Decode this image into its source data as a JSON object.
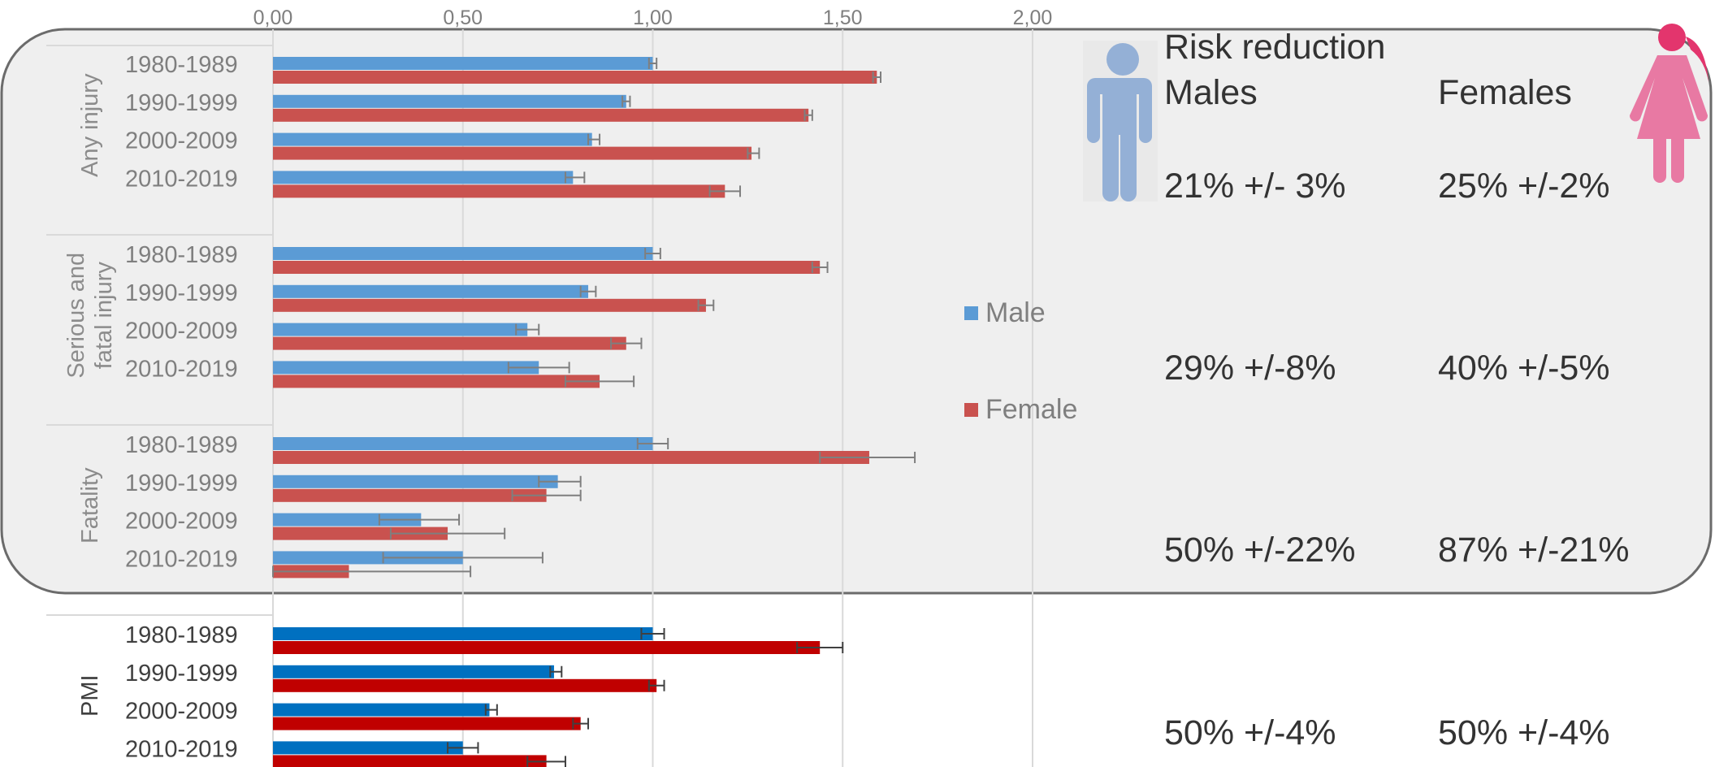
{
  "colors": {
    "male": "#5b9bd5",
    "female": "#c9524f",
    "male_pmi": "#0070c0",
    "female_pmi": "#c00000",
    "panel_bg": "#efefef",
    "male_icon": "#94b0d6",
    "female_icon": "#e879a3",
    "female_icon_head": "#e3356d"
  },
  "icons": {
    "male": "male-figure-icon",
    "female": "female-figure-icon"
  },
  "chart_data": {
    "type": "bar",
    "orientation": "horizontal",
    "xlim": [
      0,
      2.0
    ],
    "x_ticks": [
      "0,00",
      "0,50",
      "1,00",
      "1,50",
      "2,00"
    ],
    "grid": true,
    "legend": {
      "entries": [
        "Male",
        "Female"
      ],
      "position": "right"
    },
    "groups": [
      {
        "label": "Any injury",
        "categories": [
          "1980-1989",
          "1990-1999",
          "2000-2009",
          "2010-2019"
        ],
        "series": [
          {
            "name": "Male",
            "values": [
              1.0,
              0.93,
              0.84,
              0.79
            ],
            "err_low": [
              0.99,
              0.92,
              0.83,
              0.77
            ],
            "err_high": [
              1.01,
              0.94,
              0.86,
              0.82
            ]
          },
          {
            "name": "Female",
            "values": [
              1.59,
              1.41,
              1.26,
              1.19
            ],
            "err_low": [
              1.58,
              1.4,
              1.25,
              1.15
            ],
            "err_high": [
              1.6,
              1.42,
              1.28,
              1.23
            ]
          }
        ]
      },
      {
        "label": "Serious and fatal injury",
        "label_lines": [
          "Serious and",
          "fatal injury"
        ],
        "categories": [
          "1980-1989",
          "1990-1999",
          "2000-2009",
          "2010-2019"
        ],
        "series": [
          {
            "name": "Male",
            "values": [
              1.0,
              0.83,
              0.67,
              0.7
            ],
            "err_low": [
              0.98,
              0.81,
              0.64,
              0.62
            ],
            "err_high": [
              1.02,
              0.85,
              0.7,
              0.78
            ]
          },
          {
            "name": "Female",
            "values": [
              1.44,
              1.14,
              0.93,
              0.86
            ],
            "err_low": [
              1.42,
              1.12,
              0.89,
              0.77
            ],
            "err_high": [
              1.46,
              1.16,
              0.97,
              0.95
            ]
          }
        ]
      },
      {
        "label": "Fatality",
        "categories": [
          "1980-1989",
          "1990-1999",
          "2000-2009",
          "2010-2019"
        ],
        "series": [
          {
            "name": "Male",
            "values": [
              1.0,
              0.75,
              0.39,
              0.5
            ],
            "err_low": [
              0.96,
              0.7,
              0.28,
              0.29
            ],
            "err_high": [
              1.04,
              0.81,
              0.49,
              0.71
            ]
          },
          {
            "name": "Female",
            "values": [
              1.57,
              0.72,
              0.46,
              0.2
            ],
            "err_low": [
              1.44,
              0.63,
              0.31,
              0.0
            ],
            "err_high": [
              1.69,
              0.81,
              0.61,
              0.52
            ]
          }
        ]
      },
      {
        "label": "PMI",
        "categories": [
          "1980-1989",
          "1990-1999",
          "2000-2009",
          "2010-2019"
        ],
        "series": [
          {
            "name": "Male",
            "values": [
              1.0,
              0.74,
              0.57,
              0.5
            ],
            "err_low": [
              0.97,
              0.73,
              0.56,
              0.46
            ],
            "err_high": [
              1.03,
              0.76,
              0.59,
              0.54
            ]
          },
          {
            "name": "Female",
            "values": [
              1.44,
              1.01,
              0.81,
              0.72
            ],
            "err_low": [
              1.38,
              0.99,
              0.79,
              0.67
            ],
            "err_high": [
              1.5,
              1.03,
              0.83,
              0.77
            ]
          }
        ]
      }
    ]
  },
  "risk_panel": {
    "title": "Risk reduction",
    "male_header": "Males",
    "female_header": "Females",
    "rows": [
      {
        "male": "21% +/- 3%",
        "female": "25% +/-2%"
      },
      {
        "male": "29% +/-8%",
        "female": "40% +/-5%"
      },
      {
        "male": "50% +/-22%",
        "female": "87% +/-21%"
      },
      {
        "male": "50% +/-4%",
        "female": "50% +/-4%"
      }
    ]
  }
}
